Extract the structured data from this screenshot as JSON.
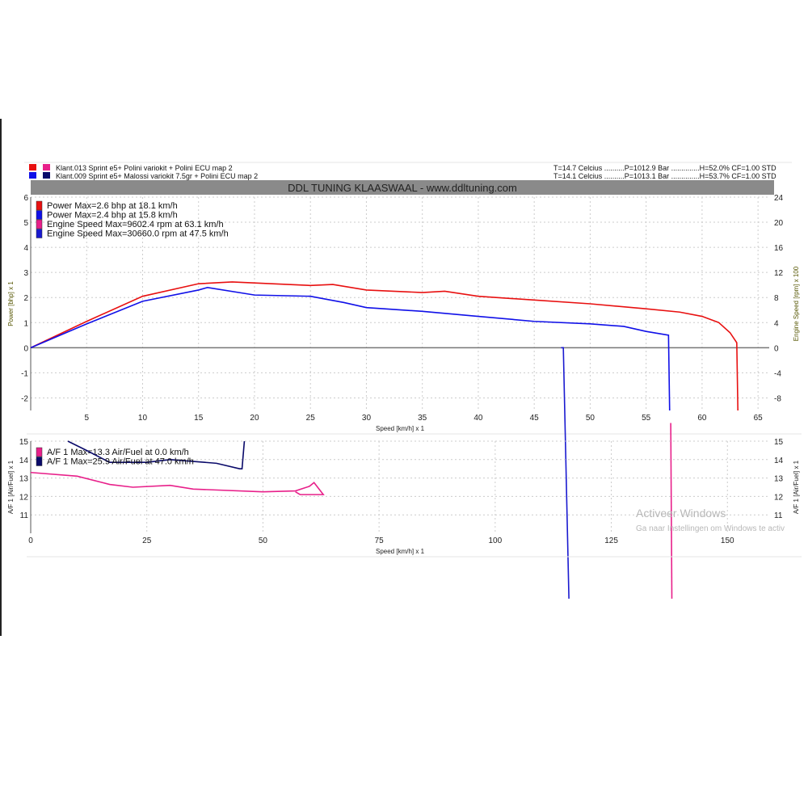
{
  "header": {
    "runs": [
      {
        "label": "Klant.013 Sprint e5+   Polini variokit + Polini ECU map 2",
        "conditions": "T=14.7 Celcius ..........P=1012.9 Bar ..............H=52.0% CF=1.00 STD",
        "colors": [
          "#e81010",
          "#e8208a"
        ]
      },
      {
        "label": "Klant.009 Sprint e5+   Malossi variokit 7.5gr + Polini ECU map 2",
        "conditions": "T=14.1 Celcius ..........P=1013.1 Bar ..............H=53.7% CF=1.00 STD",
        "colors": [
          "#1010e8",
          "#0a0a6a"
        ]
      }
    ],
    "title": "DDL TUNING KLAASWAAL - www.ddltuning.com"
  },
  "watermark": {
    "line1": "Activeer Windows",
    "line2": "Ga naar Instellingen om Windows te activ"
  },
  "chart_data": [
    {
      "type": "line",
      "xlabel": "Speed [km/h] x 1",
      "ylabel": "Power [bhp] x 1",
      "y2label": "Engine Speed [rpm] x 100",
      "xlim": [
        0,
        66
      ],
      "ylim": [
        -2.5,
        6
      ],
      "y2lim": [
        -10,
        24
      ],
      "xticks": [
        5,
        10,
        15,
        20,
        25,
        30,
        35,
        40,
        45,
        50,
        55,
        60,
        65
      ],
      "yticks": [
        6,
        5,
        4,
        3,
        2,
        1,
        0,
        -1,
        -2
      ],
      "y2ticks": [
        24,
        20,
        16,
        12,
        8,
        4,
        0,
        -4,
        -8
      ],
      "grid": true,
      "legend_position": "top-left",
      "series": [
        {
          "name": "Power  Max=2.6 bhp at 18.1 km/h",
          "color": "#e81010",
          "points": [
            [
              0,
              0
            ],
            [
              5,
              1.05
            ],
            [
              10,
              2.05
            ],
            [
              15,
              2.55
            ],
            [
              18,
              2.62
            ],
            [
              20,
              2.58
            ],
            [
              25,
              2.48
            ],
            [
              27,
              2.52
            ],
            [
              30,
              2.3
            ],
            [
              35,
              2.2
            ],
            [
              37,
              2.25
            ],
            [
              40,
              2.05
            ],
            [
              45,
              1.9
            ],
            [
              50,
              1.75
            ],
            [
              55,
              1.55
            ],
            [
              58,
              1.42
            ],
            [
              60,
              1.25
            ],
            [
              61.5,
              1.0
            ],
            [
              62.5,
              0.6
            ],
            [
              63.1,
              0.2
            ],
            [
              63.2,
              -2.5
            ]
          ]
        },
        {
          "name": "Power  Max=2.4 bhp at 15.8 km/h",
          "color": "#1010e8",
          "points": [
            [
              0,
              0
            ],
            [
              5,
              0.95
            ],
            [
              10,
              1.85
            ],
            [
              15,
              2.3
            ],
            [
              15.8,
              2.4
            ],
            [
              20,
              2.1
            ],
            [
              25,
              2.05
            ],
            [
              28,
              1.8
            ],
            [
              30,
              1.6
            ],
            [
              35,
              1.45
            ],
            [
              40,
              1.25
            ],
            [
              45,
              1.05
            ],
            [
              50,
              0.95
            ],
            [
              53,
              0.85
            ],
            [
              55,
              0.65
            ],
            [
              57,
              0.5
            ],
            [
              57.1,
              -2.5
            ]
          ]
        },
        {
          "name": "Engine Speed  Max=9602.4 rpm at 63.1 km/h",
          "color": "#e8208a",
          "points": [
            [
              57.2,
              -3
            ],
            [
              57.3,
              -10
            ]
          ]
        },
        {
          "name": "Engine Speed  Max=30660.0 rpm at 47.5 km/h",
          "color": "#1a1ad0",
          "points": [
            [
              47.4,
              0
            ],
            [
              47.6,
              0
            ],
            [
              48.1,
              -10
            ]
          ]
        }
      ]
    },
    {
      "type": "line",
      "xlabel": "Speed [km/h] x 1",
      "ylabel": "A/F 1 [Air/Fuel] x 1",
      "xlim": [
        0,
        159
      ],
      "ylim": [
        10,
        15
      ],
      "xticks": [
        0,
        25,
        50,
        75,
        100,
        125,
        150
      ],
      "yticks": [
        15,
        14,
        13,
        12,
        11
      ],
      "grid": true,
      "legend_position": "top-left",
      "series": [
        {
          "name": "A/F 1  Max=13.3 Air/Fuel at 0.0 km/h",
          "color": "#e8208a",
          "points": [
            [
              0,
              13.3
            ],
            [
              10,
              13.1
            ],
            [
              17,
              12.65
            ],
            [
              22,
              12.5
            ],
            [
              30,
              12.6
            ],
            [
              35,
              12.4
            ],
            [
              50,
              12.25
            ],
            [
              57,
              12.3
            ],
            [
              60,
              12.55
            ],
            [
              61,
              12.75
            ],
            [
              63,
              12.1
            ],
            [
              58,
              12.1
            ],
            [
              57,
              12.25
            ]
          ]
        },
        {
          "name": "A/F 1  Max=25.9 Air/Fuel at 47.0 km/h",
          "color": "#0a0a6a",
          "points": [
            [
              8,
              15
            ],
            [
              12,
              14.5
            ],
            [
              17,
              13.85
            ],
            [
              25,
              13.85
            ],
            [
              30,
              14.0
            ],
            [
              40,
              13.8
            ],
            [
              45,
              13.5
            ],
            [
              45.5,
              13.5
            ],
            [
              46,
              15
            ]
          ]
        }
      ]
    }
  ]
}
